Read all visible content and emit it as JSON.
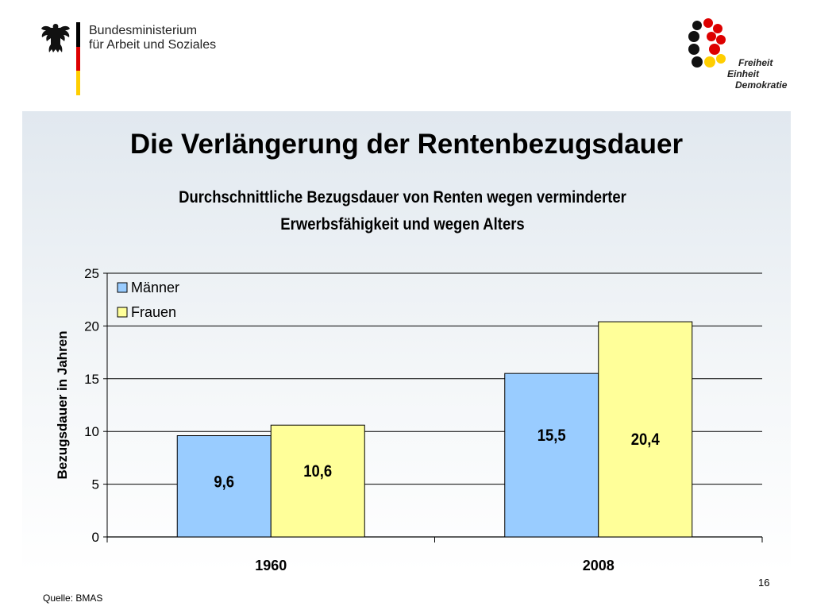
{
  "header": {
    "ministry_line1": "Bundesministerium",
    "ministry_line2": "für Arbeit und Soziales",
    "logo_lines": [
      "Freiheit",
      "Einheit",
      "Demokratie"
    ]
  },
  "slide": {
    "title": "Die Verlängerung der Rentenbezugsdauer",
    "subtitle_line1": "Durchschnittliche Bezugsdauer von Renten wegen verminderter",
    "subtitle_line2": "Erwerbsfähigkeit und wegen Alters",
    "source": "Quelle: BMAS",
    "page_number": "16"
  },
  "colors": {
    "maenner": "#99ccff",
    "frauen": "#ffff99",
    "flag_black": "#000000",
    "flag_red": "#dd0000",
    "flag_gold": "#ffce00"
  },
  "chart_data": {
    "type": "bar",
    "title": "Durchschnittliche Bezugsdauer von Renten wegen verminderter Erwerbsfähigkeit und wegen Alters",
    "categories": [
      "1960",
      "2008"
    ],
    "series": [
      {
        "name": "Männer",
        "values": [
          9.6,
          15.5
        ],
        "labels": [
          "9,6",
          "15,5"
        ]
      },
      {
        "name": "Frauen",
        "values": [
          10.6,
          20.4
        ],
        "labels": [
          "10,6",
          "20,4"
        ]
      }
    ],
    "ylabel": "Bezugsdauer in Jahren",
    "xlabel": "",
    "ylim": [
      0,
      25
    ],
    "yticks": [
      "0",
      "5",
      "10",
      "15",
      "20",
      "25"
    ],
    "grid": true,
    "legend_position": "top-left"
  }
}
